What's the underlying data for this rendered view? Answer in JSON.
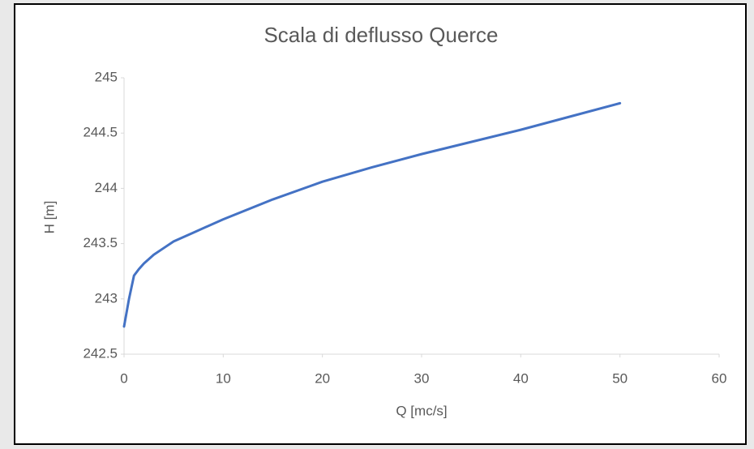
{
  "chart_data": {
    "type": "line",
    "title": "Scala di deflusso Querce",
    "x_label": "Q [mc/s]",
    "y_label": "H [m]",
    "x": [
      0,
      0.5,
      1,
      1.5,
      2,
      3,
      4,
      5,
      7,
      10,
      15,
      20,
      25,
      30,
      35,
      40,
      45,
      50
    ],
    "values": [
      242.75,
      243.0,
      243.21,
      243.27,
      243.32,
      243.4,
      243.46,
      243.52,
      243.6,
      243.72,
      243.9,
      244.06,
      244.19,
      244.31,
      244.42,
      244.53,
      244.65,
      244.77
    ],
    "color": "#4472c4",
    "xlim": [
      0,
      60
    ],
    "xticks": [
      0,
      10,
      20,
      30,
      40,
      50,
      60
    ],
    "ylim": [
      242.5,
      245
    ],
    "yticks": [
      242.5,
      243,
      243.5,
      244,
      244.5,
      245
    ],
    "grid": false
  }
}
